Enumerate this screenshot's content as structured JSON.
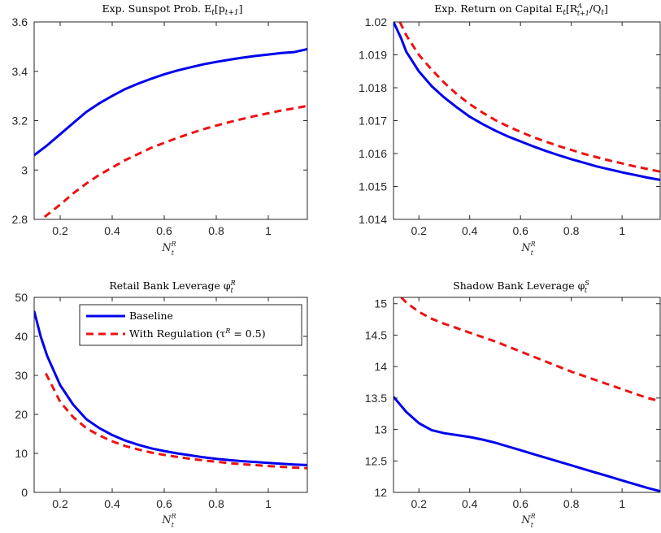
{
  "colors": {
    "baseline": "#0000ee",
    "regulation": "#ee1111"
  },
  "legend": {
    "baseline": "Baseline",
    "regulation": "With Regulation (τ",
    "regulation_sup": "R",
    "regulation_tail": " = 0.5)"
  },
  "chart_data": [
    {
      "type": "line",
      "title": "Exp. Sunspot Prob. E",
      "title_sub": "t",
      "title_tail": "[p",
      "title_sub2": "t+1",
      "title_end": "]",
      "xlabel": "N",
      "xlabel_sup": "R",
      "xlabel_sub": "t",
      "xlim": [
        0.1,
        1.15
      ],
      "ylim": [
        2.8,
        3.6
      ],
      "xticks": [
        0.2,
        0.4,
        0.6,
        0.8,
        1
      ],
      "xtick_labels": [
        "0.2",
        "0.4",
        "0.6",
        "0.8",
        "1"
      ],
      "yticks": [
        2.8,
        3.0,
        3.2,
        3.4,
        3.6
      ],
      "ytick_labels": [
        "2.8",
        "3",
        "3.2",
        "3.4",
        "3.6"
      ],
      "series": [
        {
          "key": "baseline",
          "x": [
            0.1,
            0.15,
            0.2,
            0.25,
            0.3,
            0.35,
            0.4,
            0.45,
            0.5,
            0.55,
            0.6,
            0.65,
            0.7,
            0.75,
            0.8,
            0.85,
            0.9,
            0.95,
            1.0,
            1.05,
            1.1,
            1.15
          ],
          "y": [
            3.06,
            3.1,
            3.145,
            3.19,
            3.235,
            3.27,
            3.3,
            3.328,
            3.35,
            3.37,
            3.388,
            3.403,
            3.416,
            3.428,
            3.438,
            3.447,
            3.455,
            3.462,
            3.468,
            3.474,
            3.478,
            3.49
          ]
        },
        {
          "key": "regulation",
          "x": [
            0.14,
            0.2,
            0.25,
            0.3,
            0.35,
            0.4,
            0.45,
            0.5,
            0.55,
            0.6,
            0.65,
            0.7,
            0.75,
            0.8,
            0.85,
            0.9,
            0.95,
            1.0,
            1.05,
            1.1,
            1.15
          ],
          "y": [
            2.81,
            2.86,
            2.905,
            2.945,
            2.98,
            3.01,
            3.04,
            3.065,
            3.09,
            3.11,
            3.13,
            3.148,
            3.165,
            3.18,
            3.194,
            3.207,
            3.219,
            3.23,
            3.241,
            3.25,
            3.26
          ]
        }
      ]
    },
    {
      "type": "line",
      "title": "Exp. Return on Capital E",
      "title_sub": "t",
      "title_tail": "[R",
      "title_supsub": [
        "A",
        "t+1"
      ],
      "title_end": "/Q",
      "title_sub3": "t",
      "title_close": "]",
      "xlabel": "N",
      "xlabel_sup": "R",
      "xlabel_sub": "t",
      "xlim": [
        0.1,
        1.15
      ],
      "ylim": [
        1.014,
        1.02
      ],
      "xticks": [
        0.2,
        0.4,
        0.6,
        0.8,
        1
      ],
      "xtick_labels": [
        "0.2",
        "0.4",
        "0.6",
        "0.8",
        "1"
      ],
      "yticks": [
        1.014,
        1.015,
        1.016,
        1.017,
        1.018,
        1.019,
        1.02
      ],
      "ytick_labels": [
        "1.014",
        "1.015",
        "1.016",
        "1.017",
        "1.018",
        "1.019",
        "1.02"
      ],
      "series": [
        {
          "key": "baseline",
          "x": [
            0.1,
            0.13,
            0.15,
            0.2,
            0.25,
            0.3,
            0.35,
            0.4,
            0.45,
            0.5,
            0.55,
            0.6,
            0.65,
            0.7,
            0.75,
            0.8,
            0.85,
            0.9,
            0.95,
            1.0,
            1.05,
            1.1,
            1.15
          ],
          "y": [
            1.02,
            1.0195,
            1.0191,
            1.0185,
            1.01805,
            1.0177,
            1.0174,
            1.01712,
            1.0169,
            1.0167,
            1.01652,
            1.01637,
            1.01622,
            1.01608,
            1.01595,
            1.01583,
            1.01572,
            1.01561,
            1.01552,
            1.01543,
            1.01535,
            1.01527,
            1.0152
          ]
        },
        {
          "key": "regulation",
          "x": [
            0.125,
            0.15,
            0.2,
            0.25,
            0.3,
            0.35,
            0.4,
            0.45,
            0.5,
            0.55,
            0.6,
            0.65,
            0.7,
            0.75,
            0.8,
            0.85,
            0.9,
            0.95,
            1.0,
            1.05,
            1.1,
            1.15
          ],
          "y": [
            1.02,
            1.0196,
            1.019,
            1.01855,
            1.01815,
            1.0178,
            1.0175,
            1.01725,
            1.01702,
            1.01683,
            1.01666,
            1.0165,
            1.01636,
            1.01623,
            1.01611,
            1.01599,
            1.01589,
            1.01579,
            1.0157,
            1.01561,
            1.01553,
            1.01545
          ]
        }
      ]
    },
    {
      "type": "line",
      "title": "Retail Bank Leverage φ",
      "title_sup": "R",
      "title_sub": "t",
      "xlabel": "N",
      "xlabel_sup": "R",
      "xlabel_sub": "t",
      "xlim": [
        0.1,
        1.15
      ],
      "ylim": [
        0,
        50
      ],
      "xticks": [
        0.2,
        0.4,
        0.6,
        0.8,
        1
      ],
      "xtick_labels": [
        "0.2",
        "0.4",
        "0.6",
        "0.8",
        "1"
      ],
      "yticks": [
        0,
        10,
        20,
        30,
        40,
        50
      ],
      "ytick_labels": [
        "0",
        "10",
        "20",
        "30",
        "40",
        "50"
      ],
      "legend": true,
      "series": [
        {
          "key": "baseline",
          "x": [
            0.1,
            0.125,
            0.15,
            0.2,
            0.25,
            0.3,
            0.35,
            0.4,
            0.45,
            0.5,
            0.55,
            0.6,
            0.65,
            0.7,
            0.75,
            0.8,
            0.85,
            0.9,
            0.95,
            1.0,
            1.05,
            1.1,
            1.15
          ],
          "y": [
            46.5,
            40,
            35,
            27.5,
            22.5,
            18.8,
            16.5,
            14.7,
            13.3,
            12.2,
            11.3,
            10.6,
            10.0,
            9.5,
            9.0,
            8.6,
            8.3,
            8.0,
            7.8,
            7.55,
            7.35,
            7.15,
            7.0
          ]
        },
        {
          "key": "regulation",
          "x": [
            0.145,
            0.2,
            0.25,
            0.3,
            0.35,
            0.4,
            0.45,
            0.5,
            0.55,
            0.6,
            0.65,
            0.7,
            0.75,
            0.8,
            0.85,
            0.9,
            0.95,
            1.0,
            1.05,
            1.1,
            1.15
          ],
          "y": [
            30.5,
            23.2,
            19.3,
            16.5,
            14.6,
            13.1,
            11.9,
            11.0,
            10.2,
            9.6,
            9.1,
            8.6,
            8.2,
            7.85,
            7.5,
            7.2,
            7.0,
            6.75,
            6.55,
            6.35,
            6.2
          ]
        }
      ]
    },
    {
      "type": "line",
      "title": "Shadow Bank Leverage φ",
      "title_sup": "S",
      "title_sub": "t",
      "xlabel": "N",
      "xlabel_sup": "R",
      "xlabel_sub": "t",
      "xlim": [
        0.1,
        1.15
      ],
      "ylim": [
        12,
        15.1
      ],
      "xticks": [
        0.2,
        0.4,
        0.6,
        0.8,
        1
      ],
      "xtick_labels": [
        "0.2",
        "0.4",
        "0.6",
        "0.8",
        "1"
      ],
      "yticks": [
        12,
        12.5,
        13,
        13.5,
        14,
        14.5,
        15
      ],
      "ytick_labels": [
        "12",
        "12.5",
        "13",
        "13.5",
        "14",
        "14.5",
        "15"
      ],
      "series": [
        {
          "key": "baseline",
          "x": [
            0.1,
            0.15,
            0.2,
            0.25,
            0.3,
            0.35,
            0.4,
            0.45,
            0.5,
            0.55,
            0.6,
            0.65,
            0.7,
            0.75,
            0.8,
            0.85,
            0.9,
            0.95,
            1.0,
            1.05,
            1.1,
            1.15
          ],
          "y": [
            13.52,
            13.28,
            13.1,
            12.99,
            12.94,
            12.91,
            12.88,
            12.84,
            12.79,
            12.73,
            12.67,
            12.61,
            12.55,
            12.49,
            12.43,
            12.37,
            12.31,
            12.25,
            12.19,
            12.13,
            12.07,
            12.02
          ]
        },
        {
          "key": "regulation",
          "x": [
            0.13,
            0.15,
            0.2,
            0.25,
            0.3,
            0.35,
            0.4,
            0.45,
            0.5,
            0.55,
            0.6,
            0.65,
            0.7,
            0.75,
            0.8,
            0.85,
            0.9,
            0.95,
            1.0,
            1.05,
            1.1,
            1.15
          ],
          "y": [
            15.1,
            15.02,
            14.87,
            14.76,
            14.68,
            14.61,
            14.54,
            14.47,
            14.4,
            14.32,
            14.24,
            14.16,
            14.08,
            14.0,
            13.92,
            13.85,
            13.78,
            13.71,
            13.64,
            13.57,
            13.5,
            13.45
          ]
        }
      ]
    }
  ]
}
